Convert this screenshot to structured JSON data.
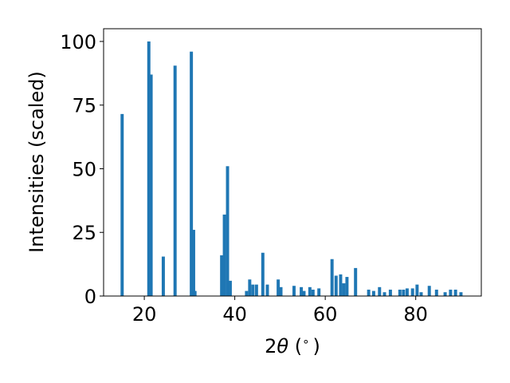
{
  "chart_data": {
    "type": "bar",
    "title": "",
    "xlabel_prefix": "2",
    "xlabel_symbol": "θ",
    "xlabel_suffix": " (",
    "xlabel_degree": "∘",
    "xlabel_end": ")",
    "ylabel": "Intensities (scaled)",
    "xlim": [
      11,
      94.5
    ],
    "ylim": [
      0,
      105
    ],
    "xticks": [
      20,
      40,
      60,
      80
    ],
    "yticks": [
      0,
      25,
      50,
      75,
      100
    ],
    "grid": false,
    "bar_color": "#1f77b4",
    "bar_width": 0.7,
    "x": [
      15.1,
      21.0,
      21.5,
      24.2,
      26.8,
      30.4,
      30.9,
      31.2,
      37.1,
      37.7,
      38.4,
      39.0,
      42.6,
      43.3,
      44.0,
      44.8,
      46.2,
      47.2,
      49.6,
      50.2,
      53.1,
      54.7,
      55.3,
      56.6,
      57.3,
      58.6,
      61.5,
      62.4,
      63.4,
      64.1,
      64.8,
      66.7,
      69.6,
      70.7,
      72.0,
      73.1,
      74.4,
      76.5,
      77.3,
      78.1,
      79.3,
      80.3,
      81.2,
      83.0,
      84.6,
      86.5,
      87.7,
      88.8,
      90.0
    ],
    "values": [
      71.5,
      100.0,
      87.0,
      15.5,
      90.5,
      96.0,
      26.0,
      2.0,
      16.0,
      32.0,
      51.0,
      6.0,
      2.0,
      6.5,
      4.5,
      4.5,
      17.0,
      4.5,
      6.5,
      3.5,
      4.0,
      3.5,
      2.0,
      3.5,
      2.5,
      3.0,
      14.5,
      8.0,
      8.5,
      5.0,
      7.5,
      11.0,
      2.5,
      2.0,
      3.5,
      1.5,
      2.5,
      2.5,
      2.5,
      3.0,
      3.0,
      4.5,
      1.5,
      4.0,
      2.5,
      1.5,
      2.5,
      2.5,
      1.5
    ]
  }
}
